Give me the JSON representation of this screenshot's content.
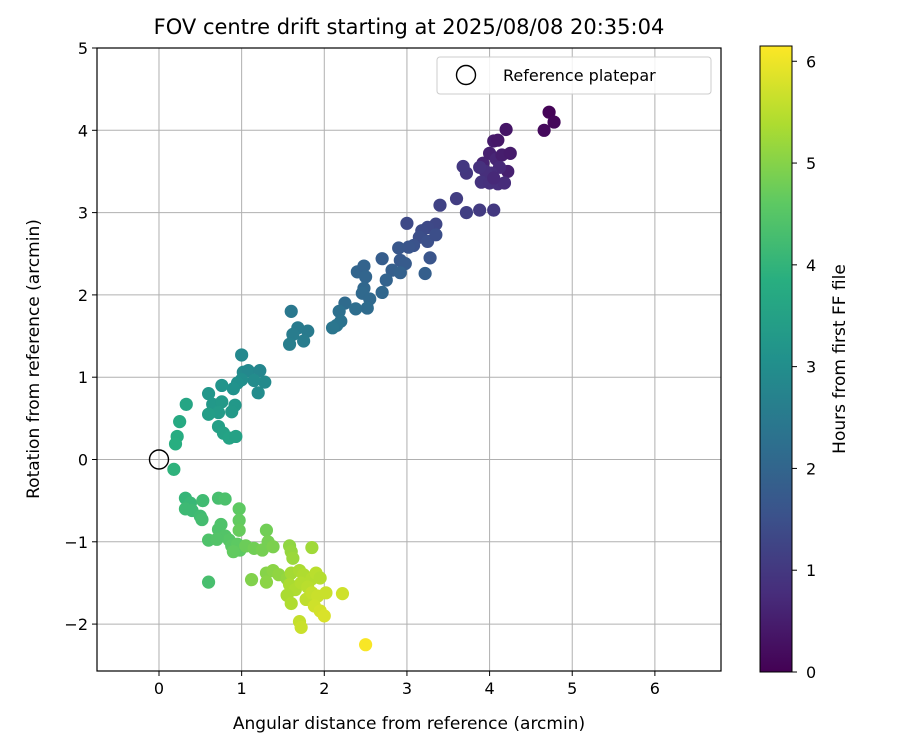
{
  "chart_data": {
    "type": "scatter",
    "title": "FOV centre drift starting at 2025/08/08 20:35:04",
    "xlabel": "Angular distance from reference (arcmin)",
    "ylabel": "Rotation from reference (arcmin)",
    "xlim": [
      -0.75,
      6.8
    ],
    "ylim": [
      -2.57,
      5.0
    ],
    "xticks": [
      0,
      1,
      2,
      3,
      4,
      5,
      6
    ],
    "yticks": [
      -2,
      -1,
      0,
      1,
      2,
      3,
      4,
      5
    ],
    "grid": true,
    "legend": {
      "placement": "top-right",
      "entries": [
        {
          "label": "Reference platepar",
          "marker": "open-circle"
        }
      ]
    },
    "reference_point": {
      "x": 0,
      "y": 0
    },
    "colorbar": {
      "label": "Hours from first FF file",
      "colormap": "viridis",
      "range": [
        0,
        6.15
      ],
      "ticks": [
        0,
        1,
        2,
        3,
        4,
        5,
        6
      ]
    },
    "series": [
      {
        "points": [
          {
            "x": 4.72,
            "y": 4.22,
            "t": 0.05
          },
          {
            "x": 4.78,
            "y": 4.1,
            "t": 0.1
          },
          {
            "x": 4.66,
            "y": 4.0,
            "t": 0.15
          },
          {
            "x": 4.2,
            "y": 4.01,
            "t": 0.35
          },
          {
            "x": 4.05,
            "y": 3.87,
            "t": 0.45
          },
          {
            "x": 4.1,
            "y": 3.88,
            "t": 0.4
          },
          {
            "x": 3.92,
            "y": 3.6,
            "t": 0.6
          },
          {
            "x": 4.0,
            "y": 3.72,
            "t": 0.55
          },
          {
            "x": 4.08,
            "y": 3.65,
            "t": 0.65
          },
          {
            "x": 4.15,
            "y": 3.7,
            "t": 0.5
          },
          {
            "x": 4.25,
            "y": 3.72,
            "t": 0.45
          },
          {
            "x": 4.22,
            "y": 3.5,
            "t": 0.55
          },
          {
            "x": 4.12,
            "y": 3.55,
            "t": 0.7
          },
          {
            "x": 4.02,
            "y": 3.48,
            "t": 0.75
          },
          {
            "x": 3.95,
            "y": 3.5,
            "t": 0.8
          },
          {
            "x": 3.88,
            "y": 3.55,
            "t": 0.85
          },
          {
            "x": 3.9,
            "y": 3.37,
            "t": 0.9
          },
          {
            "x": 4.0,
            "y": 3.36,
            "t": 0.85
          },
          {
            "x": 4.1,
            "y": 3.35,
            "t": 0.8
          },
          {
            "x": 4.18,
            "y": 3.36,
            "t": 0.75
          },
          {
            "x": 4.05,
            "y": 3.42,
            "t": 0.7
          },
          {
            "x": 3.72,
            "y": 3.48,
            "t": 0.95
          },
          {
            "x": 3.68,
            "y": 3.56,
            "t": 1.0
          },
          {
            "x": 3.6,
            "y": 3.17,
            "t": 1.1
          },
          {
            "x": 3.4,
            "y": 3.09,
            "t": 1.2
          },
          {
            "x": 3.72,
            "y": 3.0,
            "t": 1.15
          },
          {
            "x": 3.88,
            "y": 3.03,
            "t": 1.05
          },
          {
            "x": 4.05,
            "y": 3.03,
            "t": 1.0
          },
          {
            "x": 3.35,
            "y": 2.86,
            "t": 1.3
          },
          {
            "x": 3.25,
            "y": 2.82,
            "t": 1.35
          },
          {
            "x": 3.18,
            "y": 2.78,
            "t": 1.4
          },
          {
            "x": 3.0,
            "y": 2.87,
            "t": 1.35
          },
          {
            "x": 3.15,
            "y": 2.7,
            "t": 1.45
          },
          {
            "x": 3.25,
            "y": 2.65,
            "t": 1.5
          },
          {
            "x": 3.35,
            "y": 2.73,
            "t": 1.45
          },
          {
            "x": 3.08,
            "y": 2.6,
            "t": 1.55
          },
          {
            "x": 3.02,
            "y": 2.58,
            "t": 1.6
          },
          {
            "x": 2.9,
            "y": 2.57,
            "t": 1.65
          },
          {
            "x": 3.28,
            "y": 2.45,
            "t": 1.6
          },
          {
            "x": 2.92,
            "y": 2.42,
            "t": 1.7
          },
          {
            "x": 2.98,
            "y": 2.38,
            "t": 1.75
          },
          {
            "x": 2.7,
            "y": 2.44,
            "t": 1.8
          },
          {
            "x": 2.82,
            "y": 2.3,
            "t": 1.85
          },
          {
            "x": 2.92,
            "y": 2.27,
            "t": 1.9
          },
          {
            "x": 3.22,
            "y": 2.26,
            "t": 1.85
          },
          {
            "x": 2.4,
            "y": 2.28,
            "t": 2.0
          },
          {
            "x": 2.48,
            "y": 2.35,
            "t": 1.95
          },
          {
            "x": 2.5,
            "y": 2.22,
            "t": 2.0
          },
          {
            "x": 2.75,
            "y": 2.18,
            "t": 1.95
          },
          {
            "x": 2.48,
            "y": 2.08,
            "t": 2.05
          },
          {
            "x": 2.46,
            "y": 2.02,
            "t": 2.1
          },
          {
            "x": 2.7,
            "y": 2.03,
            "t": 2.05
          },
          {
            "x": 2.55,
            "y": 1.95,
            "t": 2.1
          },
          {
            "x": 2.25,
            "y": 1.9,
            "t": 2.15
          },
          {
            "x": 2.38,
            "y": 1.83,
            "t": 2.2
          },
          {
            "x": 2.52,
            "y": 1.84,
            "t": 2.15
          },
          {
            "x": 2.18,
            "y": 1.8,
            "t": 2.25
          },
          {
            "x": 2.2,
            "y": 1.68,
            "t": 2.3
          },
          {
            "x": 2.15,
            "y": 1.63,
            "t": 2.35
          },
          {
            "x": 2.1,
            "y": 1.6,
            "t": 2.4
          },
          {
            "x": 1.6,
            "y": 1.8,
            "t": 2.45
          },
          {
            "x": 1.68,
            "y": 1.6,
            "t": 2.5
          },
          {
            "x": 1.62,
            "y": 1.52,
            "t": 2.55
          },
          {
            "x": 1.8,
            "y": 1.56,
            "t": 2.5
          },
          {
            "x": 1.75,
            "y": 1.44,
            "t": 2.55
          },
          {
            "x": 1.58,
            "y": 1.4,
            "t": 2.6
          },
          {
            "x": 1.0,
            "y": 1.27,
            "t": 2.85
          },
          {
            "x": 1.02,
            "y": 1.06,
            "t": 2.9
          },
          {
            "x": 1.08,
            "y": 1.08,
            "t": 2.85
          },
          {
            "x": 1.22,
            "y": 1.08,
            "t": 2.8
          },
          {
            "x": 1.28,
            "y": 0.94,
            "t": 2.9
          },
          {
            "x": 1.15,
            "y": 0.96,
            "t": 2.95
          },
          {
            "x": 1.0,
            "y": 0.97,
            "t": 3.0
          },
          {
            "x": 0.95,
            "y": 0.93,
            "t": 3.05
          },
          {
            "x": 1.2,
            "y": 0.81,
            "t": 2.95
          },
          {
            "x": 0.9,
            "y": 0.86,
            "t": 3.1
          },
          {
            "x": 0.76,
            "y": 0.9,
            "t": 3.15
          },
          {
            "x": 0.6,
            "y": 0.8,
            "t": 3.2
          },
          {
            "x": 0.65,
            "y": 0.67,
            "t": 3.25
          },
          {
            "x": 0.76,
            "y": 0.7,
            "t": 3.3
          },
          {
            "x": 0.92,
            "y": 0.66,
            "t": 3.25
          },
          {
            "x": 0.88,
            "y": 0.58,
            "t": 3.3
          },
          {
            "x": 0.72,
            "y": 0.57,
            "t": 3.35
          },
          {
            "x": 0.6,
            "y": 0.55,
            "t": 3.4
          },
          {
            "x": 0.72,
            "y": 0.4,
            "t": 3.45
          },
          {
            "x": 0.78,
            "y": 0.32,
            "t": 3.5
          },
          {
            "x": 0.85,
            "y": 0.26,
            "t": 3.55
          },
          {
            "x": 0.93,
            "y": 0.28,
            "t": 3.5
          },
          {
            "x": 0.33,
            "y": 0.67,
            "t": 3.6
          },
          {
            "x": 0.25,
            "y": 0.46,
            "t": 3.7
          },
          {
            "x": 0.22,
            "y": 0.28,
            "t": 3.8
          },
          {
            "x": 0.2,
            "y": 0.19,
            "t": 3.85
          },
          {
            "x": 0.18,
            "y": -0.12,
            "t": 3.95
          },
          {
            "x": 0.32,
            "y": -0.47,
            "t": 4.05
          },
          {
            "x": 0.38,
            "y": -0.53,
            "t": 4.1
          },
          {
            "x": 0.32,
            "y": -0.6,
            "t": 4.15
          },
          {
            "x": 0.4,
            "y": -0.62,
            "t": 4.15
          },
          {
            "x": 0.5,
            "y": -0.69,
            "t": 4.2
          },
          {
            "x": 0.52,
            "y": -0.73,
            "t": 4.25
          },
          {
            "x": 0.53,
            "y": -0.5,
            "t": 4.2
          },
          {
            "x": 0.72,
            "y": -0.47,
            "t": 4.3
          },
          {
            "x": 0.8,
            "y": -0.48,
            "t": 4.35
          },
          {
            "x": 0.75,
            "y": -0.79,
            "t": 4.4
          },
          {
            "x": 0.72,
            "y": -0.85,
            "t": 4.4
          },
          {
            "x": 0.8,
            "y": -0.93,
            "t": 4.45
          },
          {
            "x": 0.85,
            "y": -0.98,
            "t": 4.5
          },
          {
            "x": 0.6,
            "y": -0.98,
            "t": 4.4
          },
          {
            "x": 0.7,
            "y": -0.97,
            "t": 4.45
          },
          {
            "x": 0.88,
            "y": -1.05,
            "t": 4.55
          },
          {
            "x": 0.95,
            "y": -1.03,
            "t": 4.6
          },
          {
            "x": 0.98,
            "y": -1.1,
            "t": 4.6
          },
          {
            "x": 0.9,
            "y": -1.12,
            "t": 4.65
          },
          {
            "x": 0.6,
            "y": -1.49,
            "t": 4.3
          },
          {
            "x": 0.97,
            "y": -0.6,
            "t": 4.6
          },
          {
            "x": 0.97,
            "y": -0.74,
            "t": 4.65
          },
          {
            "x": 0.97,
            "y": -0.86,
            "t": 4.7
          },
          {
            "x": 1.05,
            "y": -1.05,
            "t": 4.75
          },
          {
            "x": 1.15,
            "y": -1.08,
            "t": 4.8
          },
          {
            "x": 1.25,
            "y": -1.1,
            "t": 4.85
          },
          {
            "x": 1.3,
            "y": -0.86,
            "t": 4.8
          },
          {
            "x": 1.32,
            "y": -1.0,
            "t": 4.85
          },
          {
            "x": 1.38,
            "y": -1.06,
            "t": 4.9
          },
          {
            "x": 1.12,
            "y": -1.46,
            "t": 4.95
          },
          {
            "x": 1.3,
            "y": -1.38,
            "t": 5.0
          },
          {
            "x": 1.3,
            "y": -1.49,
            "t": 5.05
          },
          {
            "x": 1.38,
            "y": -1.35,
            "t": 5.05
          },
          {
            "x": 1.45,
            "y": -1.4,
            "t": 5.1
          },
          {
            "x": 1.55,
            "y": -1.45,
            "t": 5.15
          },
          {
            "x": 1.58,
            "y": -1.05,
            "t": 5.1
          },
          {
            "x": 1.6,
            "y": -1.12,
            "t": 5.15
          },
          {
            "x": 1.62,
            "y": -1.2,
            "t": 5.2
          },
          {
            "x": 1.85,
            "y": -1.07,
            "t": 5.25
          },
          {
            "x": 1.6,
            "y": -1.38,
            "t": 5.3
          },
          {
            "x": 1.7,
            "y": -1.35,
            "t": 5.35
          },
          {
            "x": 1.75,
            "y": -1.4,
            "t": 5.4
          },
          {
            "x": 1.85,
            "y": -1.45,
            "t": 5.45
          },
          {
            "x": 1.9,
            "y": -1.38,
            "t": 5.5
          },
          {
            "x": 1.95,
            "y": -1.44,
            "t": 5.45
          },
          {
            "x": 1.58,
            "y": -1.52,
            "t": 5.35
          },
          {
            "x": 1.65,
            "y": -1.58,
            "t": 5.4
          },
          {
            "x": 1.72,
            "y": -1.5,
            "t": 5.45
          },
          {
            "x": 1.8,
            "y": -1.55,
            "t": 5.5
          },
          {
            "x": 1.55,
            "y": -1.65,
            "t": 5.35
          },
          {
            "x": 1.6,
            "y": -1.75,
            "t": 5.4
          },
          {
            "x": 1.78,
            "y": -1.7,
            "t": 5.55
          },
          {
            "x": 1.85,
            "y": -1.62,
            "t": 5.6
          },
          {
            "x": 1.92,
            "y": -1.66,
            "t": 5.65
          },
          {
            "x": 2.02,
            "y": -1.62,
            "t": 5.65
          },
          {
            "x": 2.22,
            "y": -1.63,
            "t": 5.7
          },
          {
            "x": 1.88,
            "y": -1.78,
            "t": 5.7
          },
          {
            "x": 1.95,
            "y": -1.84,
            "t": 5.75
          },
          {
            "x": 2.0,
            "y": -1.9,
            "t": 5.8
          },
          {
            "x": 1.7,
            "y": -1.97,
            "t": 5.6
          },
          {
            "x": 1.72,
            "y": -2.04,
            "t": 5.65
          },
          {
            "x": 2.5,
            "y": -2.25,
            "t": 6.1
          }
        ]
      }
    ]
  }
}
